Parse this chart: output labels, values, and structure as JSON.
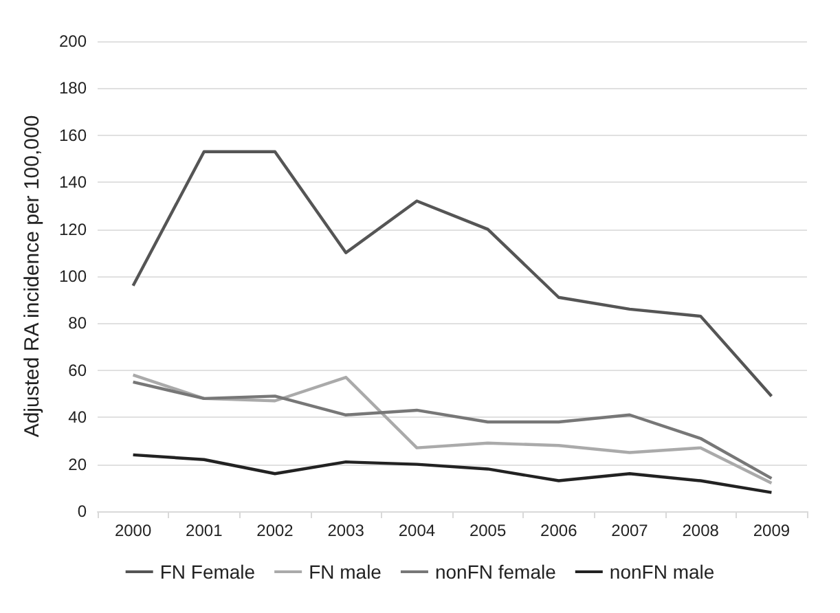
{
  "chart_data": {
    "type": "line",
    "ylabel": "Adjusted RA incidence per 100,000",
    "categories": [
      "2000",
      "2001",
      "2002",
      "2003",
      "2004",
      "2005",
      "2006",
      "2007",
      "2008",
      "2009"
    ],
    "series": [
      {
        "name": "FN Female",
        "color": "#555555",
        "values": [
          96,
          153,
          153,
          110,
          132,
          120,
          91,
          86,
          83,
          49
        ]
      },
      {
        "name": "FN male",
        "color": "#aaaaaa",
        "values": [
          58,
          48,
          47,
          57,
          27,
          29,
          28,
          25,
          27,
          12
        ]
      },
      {
        "name": "nonFN female",
        "color": "#777777",
        "values": [
          55,
          48,
          49,
          41,
          43,
          38,
          38,
          41,
          31,
          14
        ]
      },
      {
        "name": "nonFN male",
        "color": "#222222",
        "values": [
          24,
          22,
          16,
          21,
          20,
          18,
          13,
          16,
          13,
          8
        ]
      }
    ],
    "ylim": [
      0,
      200
    ],
    "yticks": [
      0,
      20,
      40,
      60,
      80,
      100,
      120,
      140,
      160,
      180,
      200
    ],
    "grid": "y",
    "legend": "bottom",
    "marker": "none",
    "line_style": "solid"
  }
}
